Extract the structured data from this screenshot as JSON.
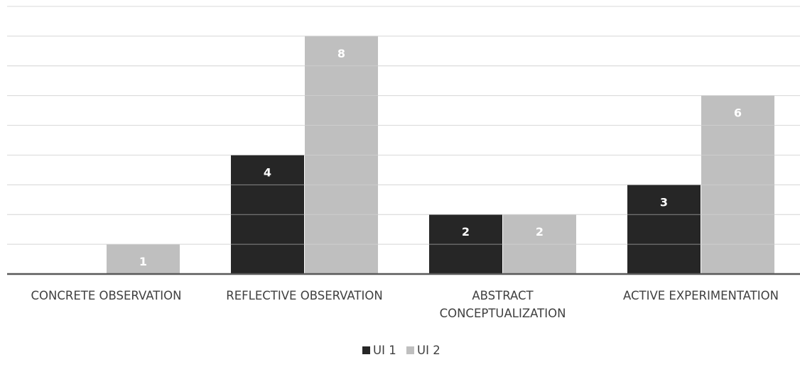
{
  "chart_data": {
    "type": "bar",
    "title": "",
    "xlabel": "",
    "ylabel": "",
    "categories": [
      [
        "CONCRETE OBSERVATION"
      ],
      [
        "REFLECTIVE OBSERVATION"
      ],
      [
        "ABSTRACT",
        "CONCEPTUALIZATION"
      ],
      [
        "ACTIVE EXPERIMENTATION"
      ]
    ],
    "series": [
      {
        "name": "UI 1",
        "values": [
          0,
          4,
          2,
          3
        ],
        "color": "#262626"
      },
      {
        "name": "UI 2",
        "values": [
          1,
          8,
          2,
          6
        ],
        "color": "#bfbfbf"
      }
    ],
    "ylim": [
      0,
      9
    ],
    "grid": true,
    "legend": "bottom-center",
    "data_labels": true,
    "y_tick_labels_visible": false
  }
}
